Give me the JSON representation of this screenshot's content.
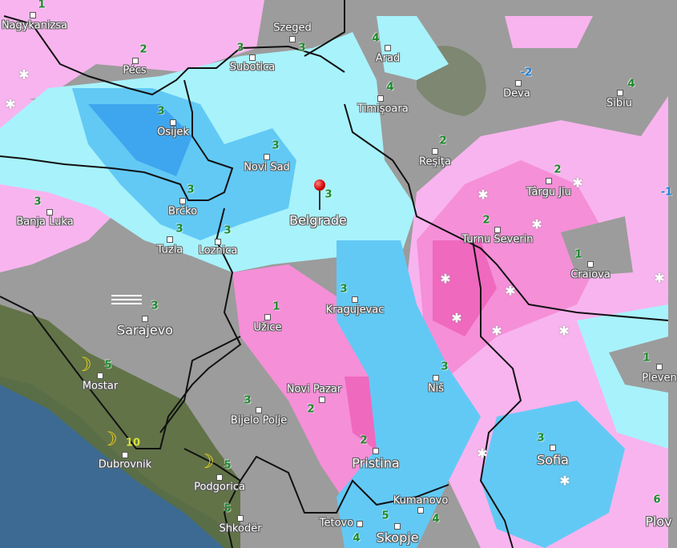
{
  "map": {
    "colors": {
      "land": "#9c9c9c",
      "sea": "#3d6a92",
      "coast_land": "#5c6f3f",
      "snow_light": "#f8b4ee",
      "snow_medium": "#f58fd8",
      "snow_heavy": "#ef69bf",
      "rain_light": "#a8f2fb",
      "rain_medium": "#62c9f5",
      "rain_heavy": "#3ea6ee",
      "border": "#111111",
      "temperature": "#1a8a2a"
    },
    "selected_location": "Belgrade",
    "cities": [
      {
        "name": "Nagykanizsa"
      },
      {
        "name": "Pécs"
      },
      {
        "name": "Szeged"
      },
      {
        "name": "Subotica"
      },
      {
        "name": "Osijek"
      },
      {
        "name": "Novi Sad"
      },
      {
        "name": "Banja Luka"
      },
      {
        "name": "Brčko"
      },
      {
        "name": "Tuzla"
      },
      {
        "name": "Loznica"
      },
      {
        "name": "Belgrade"
      },
      {
        "name": "Arad"
      },
      {
        "name": "Timişoara"
      },
      {
        "name": "Deva"
      },
      {
        "name": "Sibiu"
      },
      {
        "name": "Reşiţa"
      },
      {
        "name": "Târgu Jiu"
      },
      {
        "name": "Turnu Severin"
      },
      {
        "name": "Craiova"
      },
      {
        "name": "Sarajevo"
      },
      {
        "name": "Mostar"
      },
      {
        "name": "Užice"
      },
      {
        "name": "Kragujevac"
      },
      {
        "name": "Novi Pazar"
      },
      {
        "name": "Bijelo Polje"
      },
      {
        "name": "Dubrovnik"
      },
      {
        "name": "Podgorica"
      },
      {
        "name": "Shkodër"
      },
      {
        "name": "Niš"
      },
      {
        "name": "Pristina"
      },
      {
        "name": "Kumanovo"
      },
      {
        "name": "Skopje"
      },
      {
        "name": "Tetovo"
      },
      {
        "name": "Sofia"
      },
      {
        "name": "Pleven"
      },
      {
        "name": "Plov"
      }
    ],
    "temperatures": [
      "1",
      "2",
      "3",
      "3",
      "3",
      "3",
      "3",
      "3",
      "3",
      "3",
      "3",
      "4",
      "4",
      "2",
      "-2",
      "4",
      "2",
      "2",
      "1",
      "3",
      "5",
      "1",
      "3",
      "3",
      "2",
      "10",
      "5",
      "5",
      "3",
      "2",
      "5",
      "4",
      "4",
      "3",
      "1",
      "6",
      "-1"
    ],
    "weather_icons": {
      "snow": "snowflake-icon",
      "night_clear": "moon-icon",
      "fog": "fog-icon",
      "location": "map-pin-icon"
    }
  }
}
